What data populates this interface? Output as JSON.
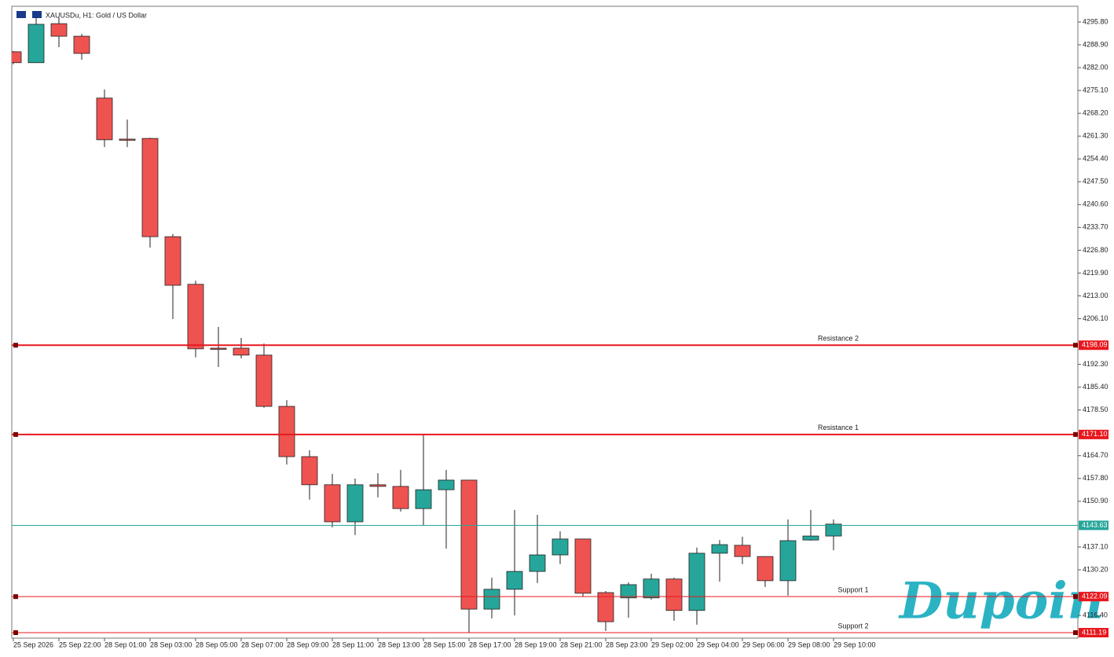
{
  "chart_data": {
    "type": "candlestick",
    "title": "XAUUSDu, H1:  Gold / US Dollar",
    "watermark": "Dupoin",
    "categories": [
      "25 Sep 2026",
      null,
      "25 Sep 22:00",
      null,
      "28 Sep 01:00",
      null,
      "28 Sep 03:00",
      null,
      "28 Sep 05:00",
      null,
      "28 Sep 07:00",
      null,
      "28 Sep 09:00",
      null,
      "28 Sep 11:00",
      null,
      "28 Sep 13:00",
      null,
      "28 Sep 15:00",
      null,
      "28 Sep 17:00",
      null,
      "28 Sep 19:00",
      null,
      "28 Sep 21:00",
      null,
      "28 Sep 23:00",
      null,
      "29 Sep 02:00",
      null,
      "29 Sep 04:00",
      null,
      "29 Sep 06:00",
      null,
      "29 Sep 08:00",
      null,
      "29 Sep 10:00"
    ],
    "open": [
      4286.8,
      4283.5,
      4295.3,
      4291.5,
      4272.8,
      4260.4,
      4260.6,
      4230.9,
      4216.5,
      4197.2,
      4197.2,
      4195.1,
      4179.6,
      4164.4,
      4155.9,
      4144.7,
      4155.9,
      4155.4,
      4148.7,
      4154.4,
      4157.3,
      4118.3,
      4124.3,
      4129.7,
      4134.7,
      4139.5,
      4123.3,
      4121.7,
      4121.7,
      4127.4,
      4117.9,
      4135.2,
      4137.6,
      4134.2,
      4126.9,
      4139.2,
      4140.4
    ],
    "high": [
      4287.0,
      4297.2,
      4297.2,
      4292.2,
      4275.4,
      4266.3,
      4260.8,
      4231.7,
      4217.6,
      4203.6,
      4200.3,
      4198.6,
      4181.5,
      4166.3,
      4159.2,
      4157.8,
      4159.4,
      4160.4,
      4171.3,
      4160.4,
      4157.3,
      4127.8,
      4148.3,
      4146.8,
      4141.8,
      4139.6,
      4123.8,
      4126.4,
      4129.0,
      4127.8,
      4136.9,
      4139.2,
      4140.2,
      4134.3,
      4145.4,
      4148.3,
      4145.4
    ],
    "low": [
      4283.0,
      4283.5,
      4288.2,
      4284.4,
      4258.0,
      4258.0,
      4227.6,
      4206.0,
      4194.4,
      4191.5,
      4194.1,
      4179.2,
      4162.0,
      4151.4,
      4143.0,
      4140.7,
      4152.1,
      4147.8,
      4143.5,
      4136.6,
      4111.2,
      4115.5,
      4116.4,
      4126.2,
      4131.9,
      4122.1,
      4111.7,
      4115.7,
      4121.2,
      4114.8,
      4113.6,
      4126.6,
      4131.9,
      4125.0,
      4122.4,
      4139.0,
      4136.1
    ],
    "close": [
      4283.5,
      4295.1,
      4291.5,
      4286.3,
      4260.2,
      4260.2,
      4230.9,
      4216.2,
      4197.0,
      4197.0,
      4195.1,
      4179.6,
      4164.4,
      4155.9,
      4144.7,
      4155.9,
      4155.4,
      4148.7,
      4154.4,
      4157.3,
      4118.3,
      4124.3,
      4129.7,
      4134.7,
      4139.5,
      4123.1,
      4114.5,
      4125.7,
      4127.4,
      4117.9,
      4135.2,
      4137.8,
      4134.2,
      4126.9,
      4139.0,
      4140.4,
      4144.0
    ],
    "up_color": "#26a69a",
    "down_color": "#ef5350",
    "levels": [
      {
        "name": "Resistance 2",
        "value": 4198.09,
        "value_label": "4198.09",
        "color": "#e8171d"
      },
      {
        "name": "Resistance 1",
        "value": 4171.1,
        "value_label": "4171.10",
        "color": "#e8171d"
      },
      {
        "value": 4143.63,
        "value_label": "4143.63",
        "color": "#26a69a"
      },
      {
        "name": "Support 1",
        "value": 4122.09,
        "value_label": "4122.09",
        "color": "#e8171d"
      },
      {
        "name": "Support 2",
        "value": 4111.19,
        "value_label": "4111.19",
        "color": "#e8171d"
      }
    ],
    "ylim": [
      4109.53,
      4300.55
    ],
    "yticks": [
      {
        "value": 4295.8,
        "label": "4295.80"
      },
      {
        "value": 4288.9,
        "label": "4288.90"
      },
      {
        "value": 4282.0,
        "label": "4282.00"
      },
      {
        "value": 4275.1,
        "label": "4275.10"
      },
      {
        "value": 4268.2,
        "label": "4268.20"
      },
      {
        "value": 4261.3,
        "label": "4261.30"
      },
      {
        "value": 4254.4,
        "label": "4254.40"
      },
      {
        "value": 4247.5,
        "label": "4247.50"
      },
      {
        "value": 4240.6,
        "label": "4240.60"
      },
      {
        "value": 4233.7,
        "label": "4233.70"
      },
      {
        "value": 4226.8,
        "label": "4226.80"
      },
      {
        "value": 4219.9,
        "label": "4219.90"
      },
      {
        "value": 4213.0,
        "label": "4213.00"
      },
      {
        "value": 4206.1,
        "label": "4206.10"
      },
      {
        "value": 4192.3,
        "label": "4192.30"
      },
      {
        "value": 4185.4,
        "label": "4185.40"
      },
      {
        "value": 4178.5,
        "label": "4178.50"
      },
      {
        "value": 4164.7,
        "label": "4164.70"
      },
      {
        "value": 4157.8,
        "label": "4157.80"
      },
      {
        "value": 4150.9,
        "label": "4150.90"
      },
      {
        "value": 4137.1,
        "label": "4137.10"
      },
      {
        "value": 4130.2,
        "label": "4130.20"
      },
      {
        "value": 4116.4,
        "label": "4116.40"
      }
    ]
  }
}
